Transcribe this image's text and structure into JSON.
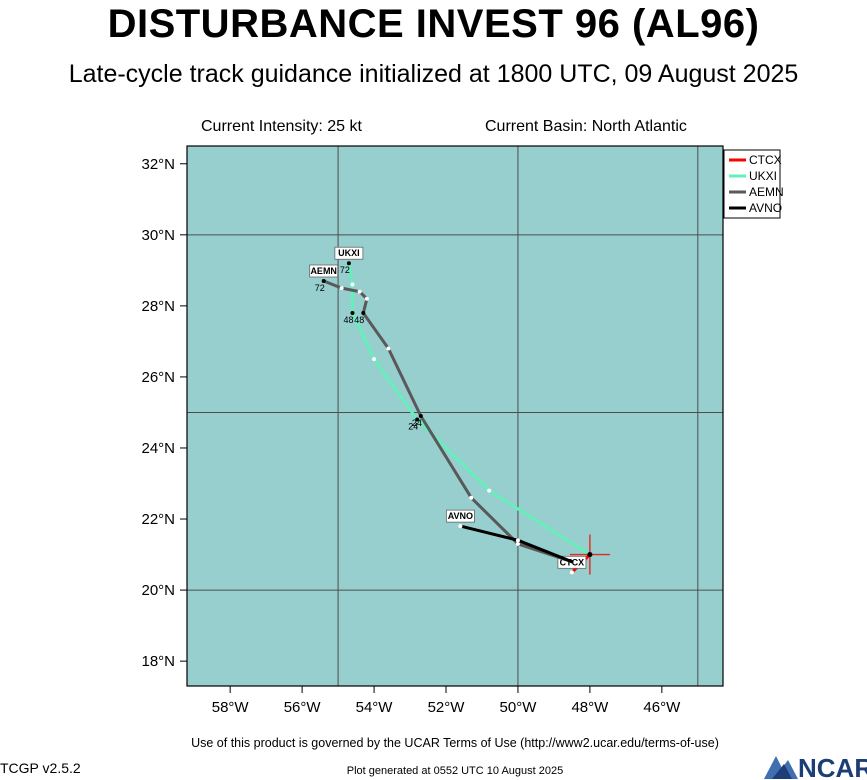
{
  "title": "DISTURBANCE INVEST 96 (AL96)",
  "subtitle": "Late-cycle track guidance initialized at 1800 UTC, 09 August 2025",
  "current_intensity": "Current Intensity: 25 kt",
  "current_basin": "Current Basin: North Atlantic",
  "terms": "Use of this product is governed by the UCAR Terms of Use (http://www2.ucar.edu/terms-of-use)",
  "version": "TCGP v2.5.2",
  "generated": "Plot generated at 0552 UTC   10 August 2025",
  "logo_text": "NCAR",
  "map": {
    "lon_range": [
      -59.2,
      -44.3
    ],
    "lat_range": [
      17.3,
      32.5
    ],
    "lon_ticks": [
      -58,
      -56,
      -54,
      -52,
      -50,
      -48,
      -46
    ],
    "lon_tick_labels": [
      "58°W",
      "56°W",
      "54°W",
      "52°W",
      "50°W",
      "48°W",
      "46°W"
    ],
    "lat_ticks": [
      18,
      20,
      22,
      24,
      26,
      28,
      30,
      32
    ],
    "lat_tick_labels": [
      "18°N",
      "20°N",
      "22°N",
      "24°N",
      "26°N",
      "28°N",
      "30°N",
      "32°N"
    ],
    "grid_lons": [
      -55,
      -50,
      -45
    ],
    "grid_lats": [
      20,
      25,
      30
    ],
    "ocean_color": "#97cece",
    "grid_color": "#4d4d4d",
    "current_position": {
      "lon": -48.0,
      "lat": 21.0,
      "color": "#e8261e"
    }
  },
  "chart_data": {
    "type": "map-track",
    "legend_placement": "top-right outside",
    "series": [
      {
        "name": "CTCX",
        "color": "#ff0000",
        "points": [
          [
            -48.0,
            21.0
          ],
          [
            -48.5,
            20.5
          ]
        ],
        "tag": "CTCX",
        "tag_at": 1,
        "hour_labels": []
      },
      {
        "name": "UKXI",
        "color": "#66eebb",
        "points": [
          [
            -48.0,
            21.0
          ],
          [
            -50.8,
            22.8
          ],
          [
            -52.8,
            24.8
          ],
          [
            -54.0,
            26.5
          ],
          [
            -54.6,
            27.8
          ],
          [
            -54.6,
            28.6
          ],
          [
            -54.7,
            29.2
          ]
        ],
        "tag": "UKXI",
        "tag_at": 6,
        "hour_labels": [
          {
            "at": 2,
            "text": "24"
          },
          {
            "at": 4,
            "text": "48"
          },
          {
            "at": 6,
            "text": "72"
          }
        ]
      },
      {
        "name": "AEMN",
        "color": "#595959",
        "points": [
          [
            -48.5,
            20.8
          ],
          [
            -50.0,
            21.3
          ],
          [
            -51.3,
            22.6
          ],
          [
            -52.7,
            24.9
          ],
          [
            -53.6,
            26.8
          ],
          [
            -54.3,
            27.8
          ],
          [
            -54.2,
            28.2
          ],
          [
            -54.4,
            28.4
          ],
          [
            -54.9,
            28.5
          ],
          [
            -55.4,
            28.7
          ]
        ],
        "tag": "AEMN",
        "tag_at": 9,
        "hour_labels": [
          {
            "at": 3,
            "text": "24"
          },
          {
            "at": 5,
            "text": "48"
          },
          {
            "at": 9,
            "text": "72"
          }
        ]
      },
      {
        "name": "AVNO",
        "color": "#000000",
        "points": [
          [
            -48.5,
            20.8
          ],
          [
            -50.0,
            21.4
          ],
          [
            -51.6,
            21.8
          ]
        ],
        "tag": "AVNO",
        "tag_at": 2,
        "hour_labels": []
      }
    ]
  }
}
